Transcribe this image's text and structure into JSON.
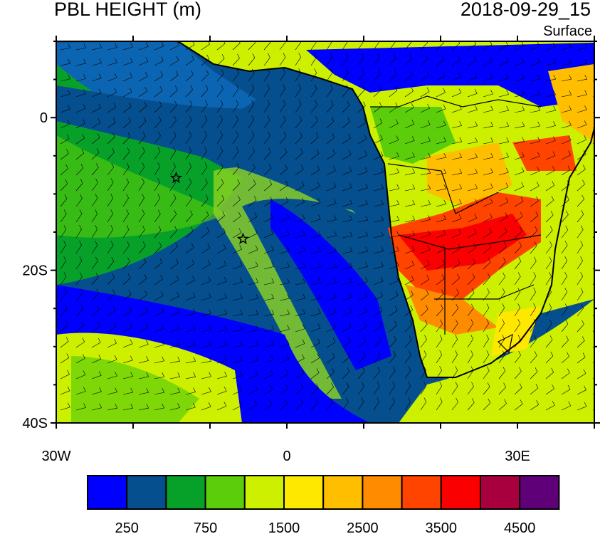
{
  "title": "PBL HEIGHT (m)",
  "time": "2018-09-29_15",
  "level": "Surface",
  "map": {
    "lon_range": [
      -30,
      40
    ],
    "lat_range": [
      -40,
      10
    ],
    "lon_ticks": [
      {
        "v": -30,
        "label": "30W"
      },
      {
        "v": 0,
        "label": "0"
      },
      {
        "v": 30,
        "label": "30E"
      }
    ],
    "lat_ticks": [
      {
        "v": 0,
        "label": "0"
      },
      {
        "v": -20,
        "label": "20S"
      },
      {
        "v": -40,
        "label": "40S"
      }
    ],
    "markers": [
      {
        "name": "star",
        "lon": -14.4,
        "lat": -7.9
      },
      {
        "name": "star",
        "lon": -5.7,
        "lat": -15.9
      }
    ],
    "overlay": "wind barbs"
  },
  "colorbar": {
    "colors": [
      "#0000ff",
      "#054f8f",
      "#07a12a",
      "#5ccd0a",
      "#ccf000",
      "#ffe800",
      "#ffbf00",
      "#ff8b00",
      "#ff4400",
      "#fa0000",
      "#a8003f",
      "#5f0078"
    ],
    "labels": [
      "250",
      "750",
      "1500",
      "2500",
      "3500",
      "4500"
    ]
  }
}
